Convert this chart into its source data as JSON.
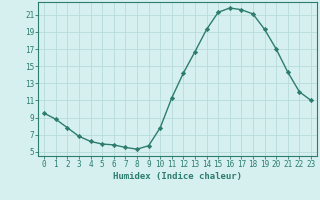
{
  "x": [
    0,
    1,
    2,
    3,
    4,
    5,
    6,
    7,
    8,
    9,
    10,
    11,
    12,
    13,
    14,
    15,
    16,
    17,
    18,
    19,
    20,
    21,
    22,
    23
  ],
  "y": [
    9.5,
    8.8,
    7.8,
    6.8,
    6.2,
    5.9,
    5.8,
    5.5,
    5.3,
    5.7,
    7.8,
    11.3,
    14.2,
    16.7,
    19.3,
    21.3,
    21.8,
    21.6,
    21.1,
    19.3,
    17.0,
    14.3,
    12.0,
    11.0
  ],
  "line_color": "#2d7d6e",
  "marker": "D",
  "markersize": 2.2,
  "linewidth": 1.0,
  "bg_color": "#d6f0ef",
  "grid_color": "#b8dbd9",
  "xlabel": "Humidex (Indice chaleur)",
  "xlim": [
    -0.5,
    23.5
  ],
  "ylim": [
    4.5,
    22.5
  ],
  "xticks": [
    0,
    1,
    2,
    3,
    4,
    5,
    6,
    7,
    8,
    9,
    10,
    11,
    12,
    13,
    14,
    15,
    16,
    17,
    18,
    19,
    20,
    21,
    22,
    23
  ],
  "yticks": [
    5,
    7,
    9,
    11,
    13,
    15,
    17,
    19,
    21
  ],
  "xlabel_fontsize": 6.5,
  "tick_fontsize": 5.5
}
